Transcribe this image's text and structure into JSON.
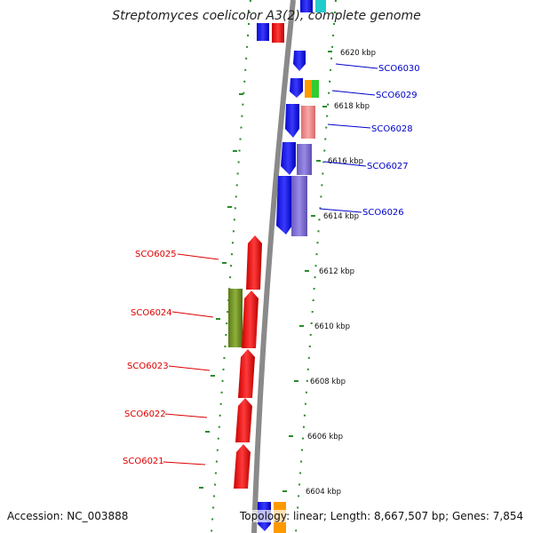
{
  "title": "Streptomyces coelicolor A3(2), complete genome",
  "footer": {
    "accession": "Accession: NC_003888",
    "topology": "Topology: linear; Length: 8,667,507 bp; Genes: 7,854"
  },
  "scale_ticks": [
    "6620 kbp",
    "6618 kbp",
    "6616 kbp",
    "6614 kbp",
    "6612 kbp",
    "6610 kbp",
    "6608 kbp",
    "6606 kbp",
    "6604 kbp"
  ],
  "genes_forward_strand": [
    "SCO6030",
    "SCO6029",
    "SCO6028",
    "SCO6027",
    "SCO6026"
  ],
  "genes_reverse_strand": [
    "SCO6025",
    "SCO6024",
    "SCO6023",
    "SCO6022",
    "SCO6021"
  ],
  "colors": {
    "backbone": "#888888",
    "forward_label": "#0000cc",
    "reverse_label": "#dd0000",
    "tick_mark": "#2a8a2a",
    "gene_blue": "#1010ee",
    "gene_pink": "#ee8888",
    "gene_purple": "#7a6acc",
    "gene_red": "#ee1010",
    "gene_olive": "#6b8e23",
    "gene_orange": "#ff9900",
    "gene_green": "#33cc33",
    "gene_cyan": "#22cccc"
  }
}
